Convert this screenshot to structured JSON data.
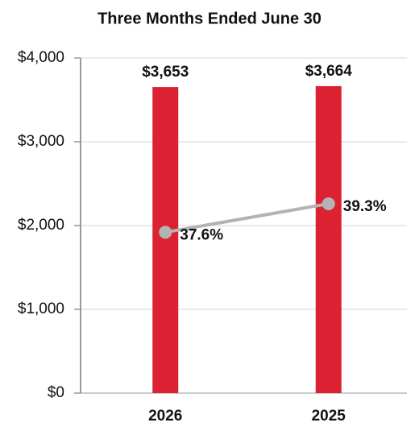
{
  "chart_data": {
    "type": "bar",
    "title": "Three Months Ended June 30",
    "categories": [
      "2026",
      "2025"
    ],
    "series": [
      {
        "type": "bar",
        "color": "#dc2232",
        "values": [
          3653,
          3664
        ],
        "value_labels": [
          "$3,653",
          "$3,664"
        ]
      },
      {
        "type": "line",
        "axis": "y2",
        "color": "#b3b3b3",
        "values": [
          37.6,
          39.3
        ],
        "value_labels": [
          "37.6%",
          "39.3%"
        ]
      }
    ],
    "ylim": [
      0,
      4000
    ],
    "yticks": [
      {
        "value": 0,
        "label": "$0"
      },
      {
        "value": 1000,
        "label": "$1,000"
      },
      {
        "value": 2000,
        "label": "$2,000"
      },
      {
        "value": 3000,
        "label": "$3,000"
      },
      {
        "value": 4000,
        "label": "$4,000"
      }
    ],
    "y2lim": [
      28,
      48
    ],
    "grid": true
  }
}
